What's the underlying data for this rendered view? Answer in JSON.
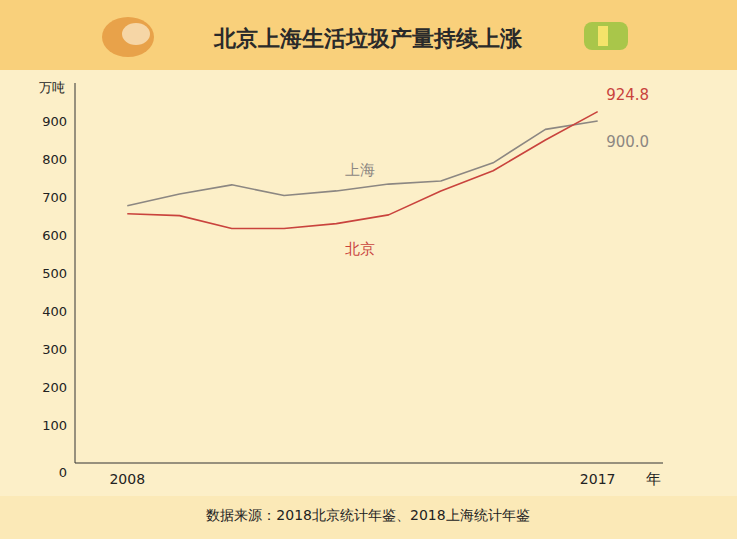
{
  "chart_data": {
    "type": "line",
    "title": "北京上海生活垃圾产量持续上涨",
    "y_label": "万吨",
    "x_label": "年",
    "source": "数据来源：2018北京统计年鉴、2018上海统计年鉴",
    "x": [
      2008,
      2009,
      2010,
      2011,
      2012,
      2013,
      2014,
      2015,
      2016,
      2017
    ],
    "xlim": [
      2007,
      2018.25
    ],
    "xticks": [
      2008,
      2017
    ],
    "ylim": [
      0,
      1000
    ],
    "yticks": [
      0,
      100,
      200,
      300,
      400,
      500,
      600,
      700,
      800,
      900
    ],
    "grid": false,
    "series": [
      {
        "name": "上海",
        "color": "#8c8782",
        "values": [
          677,
          708,
          732,
          704,
          716,
          734,
          742,
          790,
          878,
          900.0
        ],
        "value_labels": [
          null,
          null,
          null,
          null,
          null,
          null,
          null,
          null,
          null,
          "900.0"
        ]
      },
      {
        "name": "北京",
        "color": "#c9433d",
        "values": [
          656,
          651,
          617,
          617,
          630,
          653,
          716,
          769,
          850,
          924.8
        ],
        "value_labels": [
          null,
          null,
          null,
          null,
          null,
          null,
          null,
          null,
          null,
          "924.8"
        ]
      }
    ]
  }
}
